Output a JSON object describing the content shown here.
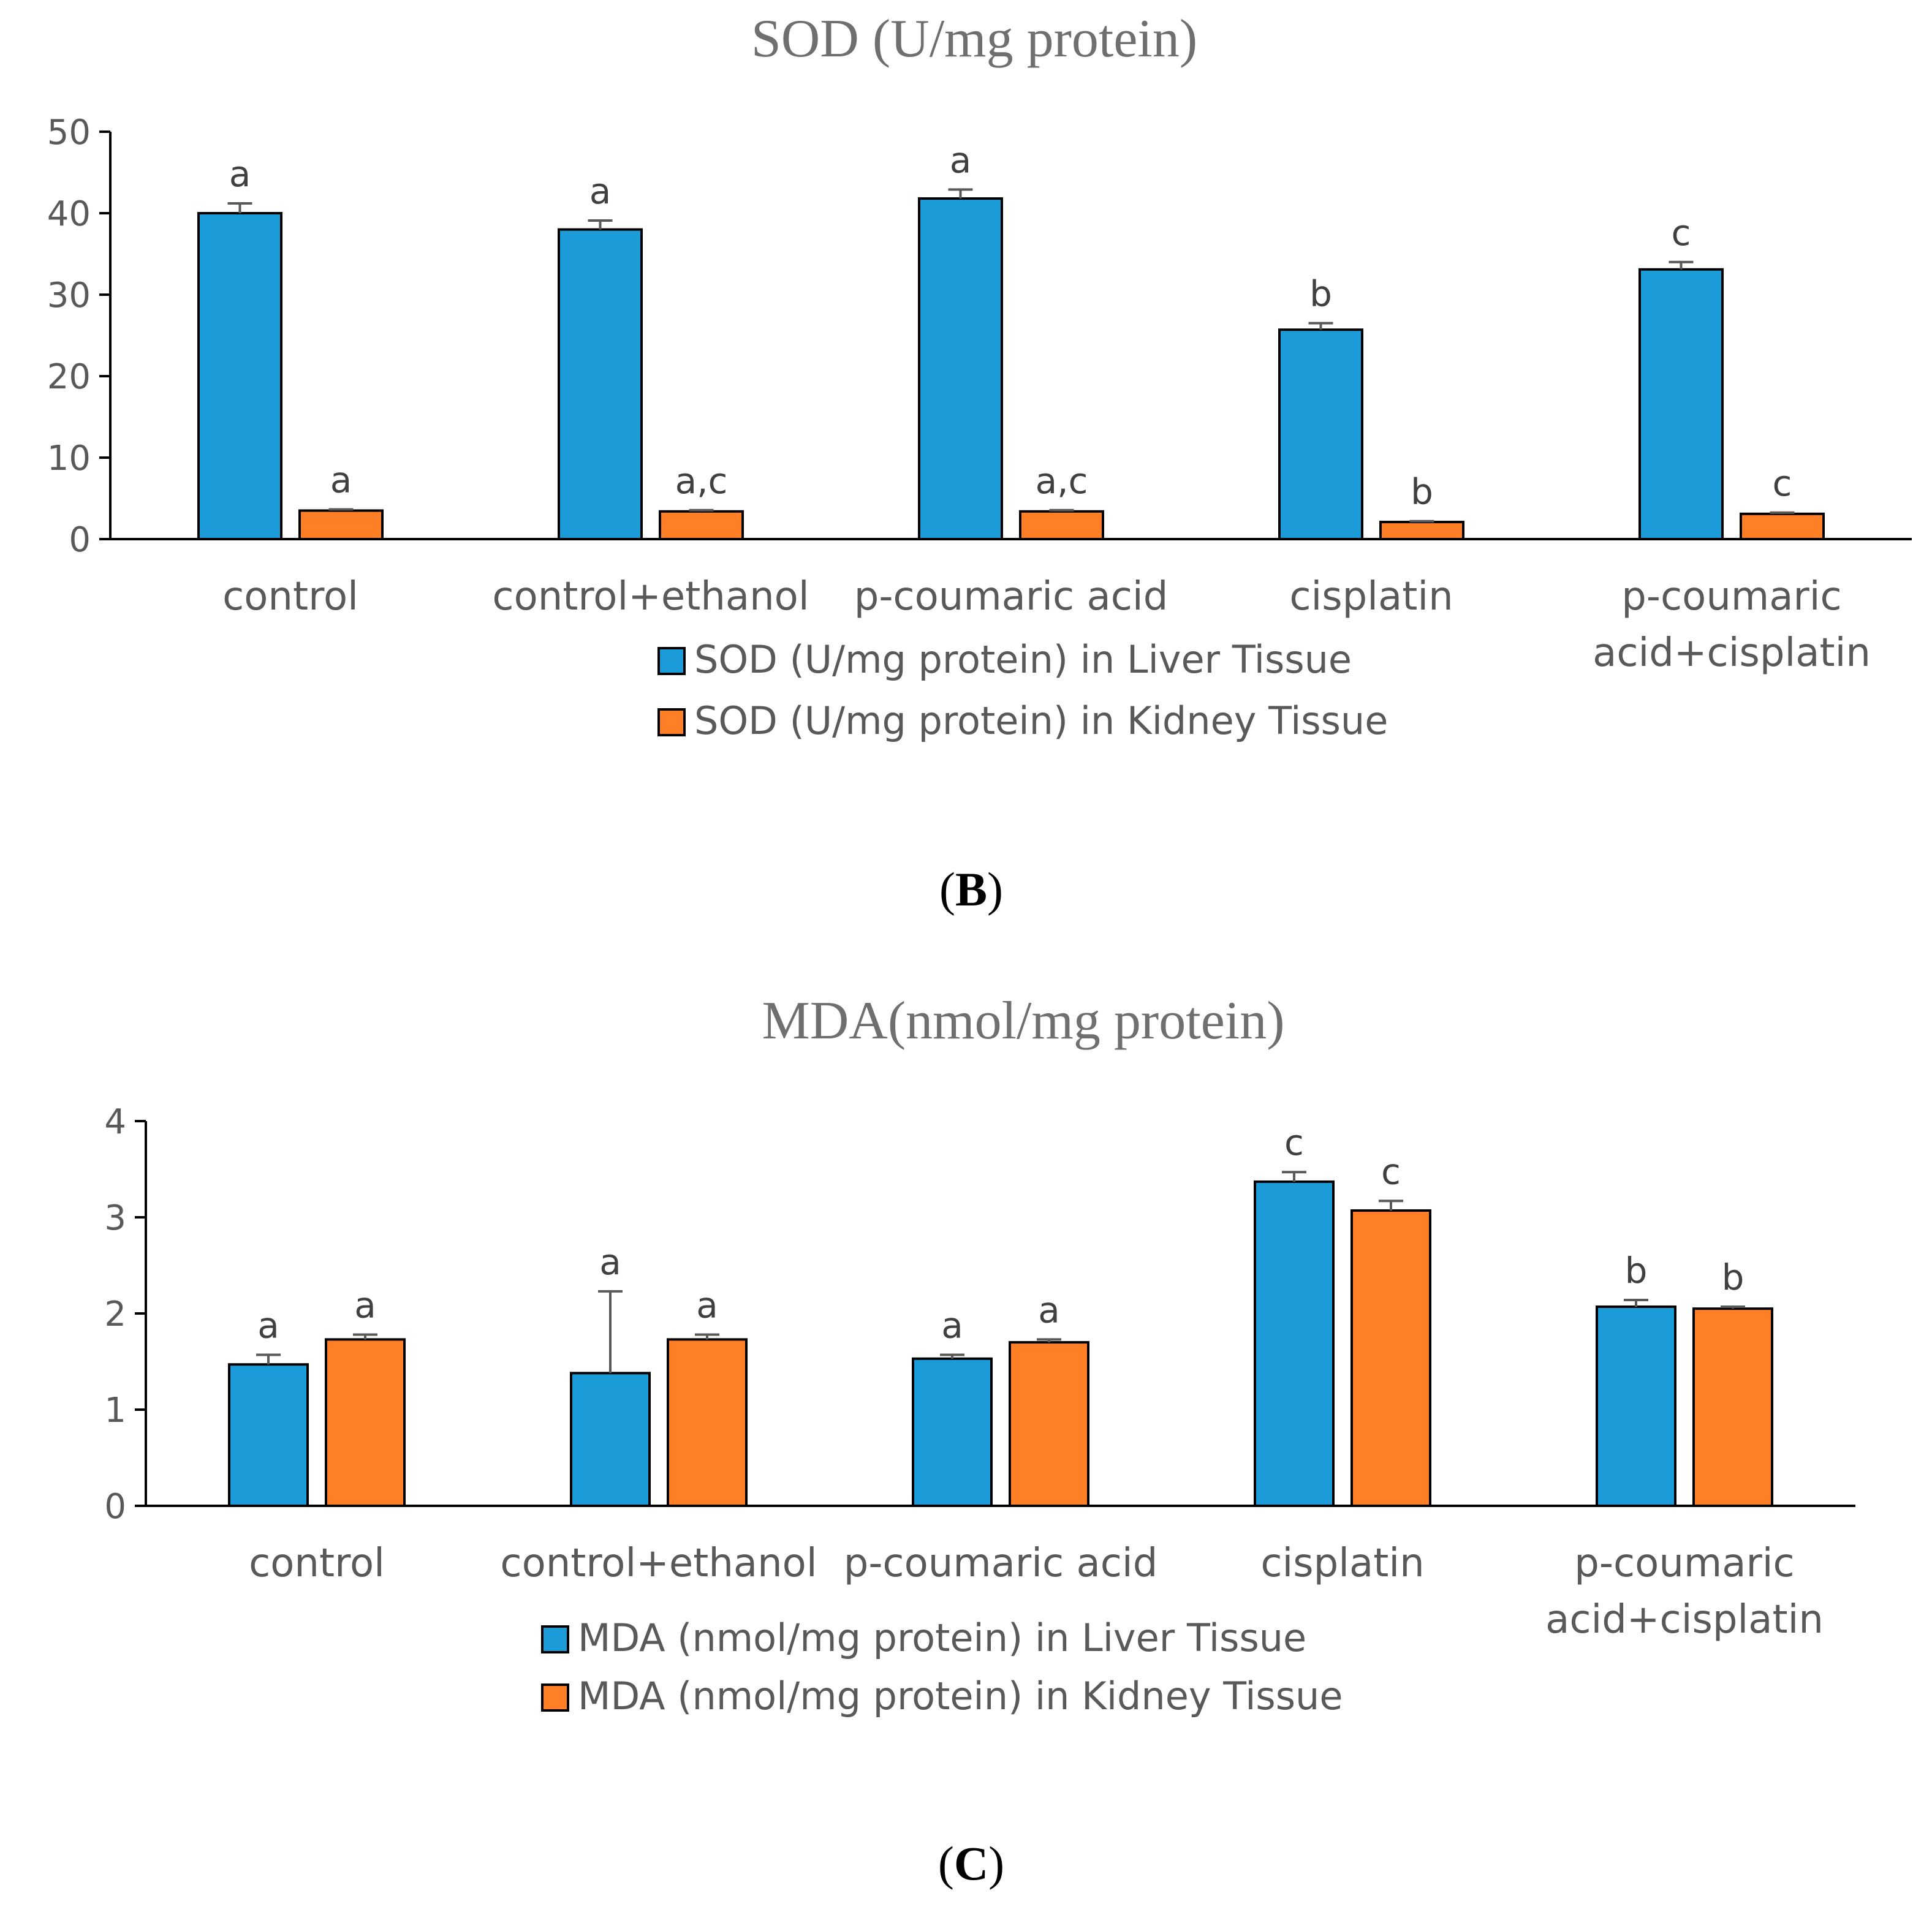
{
  "chart_data": [
    {
      "type": "bar",
      "panel_label": "B",
      "title": "SOD (U/mg protein)",
      "categories": [
        [
          "control"
        ],
        [
          "control+ethanol"
        ],
        [
          "p-coumaric acid"
        ],
        [
          "cisplatin"
        ],
        [
          "p-coumaric",
          "acid+cisplatin"
        ]
      ],
      "ylim": [
        0,
        50
      ],
      "yticks": [
        "0",
        "10",
        "20",
        "30",
        "40",
        "50"
      ],
      "legend_position": "bottom-center",
      "series": [
        {
          "name": "SOD (U/mg protein) in Liver Tissue",
          "color": "#1b9cd8",
          "values": [
            40,
            38,
            41.8,
            25.7,
            33.1
          ],
          "errors": [
            1.2,
            1.1,
            1.1,
            0.8,
            0.9
          ],
          "significance": [
            "a",
            "a",
            "a",
            "b",
            "c"
          ]
        },
        {
          "name": "SOD (U/mg protein) in Kidney Tissue",
          "color": "#ff7f27",
          "values": [
            3.5,
            3.4,
            3.4,
            2.1,
            3.1
          ],
          "errors": [
            0.15,
            0.15,
            0.15,
            0.1,
            0.15
          ],
          "significance": [
            "a",
            "a,c",
            "a,c",
            "b",
            "c"
          ]
        }
      ]
    },
    {
      "type": "bar",
      "panel_label": "C",
      "title": "MDA(nmol/mg protein)",
      "categories": [
        [
          "control"
        ],
        [
          "control+ethanol"
        ],
        [
          "p-coumaric acid"
        ],
        [
          "cisplatin"
        ],
        [
          "p-coumaric",
          "acid+cisplatin"
        ]
      ],
      "ylim": [
        0,
        4
      ],
      "yticks": [
        "0",
        "1",
        "2",
        "3",
        "4"
      ],
      "legend_position": "bottom-center",
      "series": [
        {
          "name": "MDA (nmol/mg protein) in Liver Tissue",
          "color": "#1b9cd8",
          "values": [
            1.47,
            1.38,
            1.53,
            3.37,
            2.07
          ],
          "errors": [
            0.1,
            0.85,
            0.04,
            0.1,
            0.07
          ],
          "significance": [
            "a",
            "a",
            "a",
            "c",
            "b"
          ]
        },
        {
          "name": "MDA (nmol/mg protein) in Kidney Tissue",
          "color": "#ff7f27",
          "values": [
            1.73,
            1.73,
            1.7,
            3.07,
            2.05
          ],
          "errors": [
            0.05,
            0.05,
            0.03,
            0.1,
            0.02
          ],
          "significance": [
            "a",
            "a",
            "a",
            "c",
            "b"
          ]
        }
      ]
    }
  ]
}
